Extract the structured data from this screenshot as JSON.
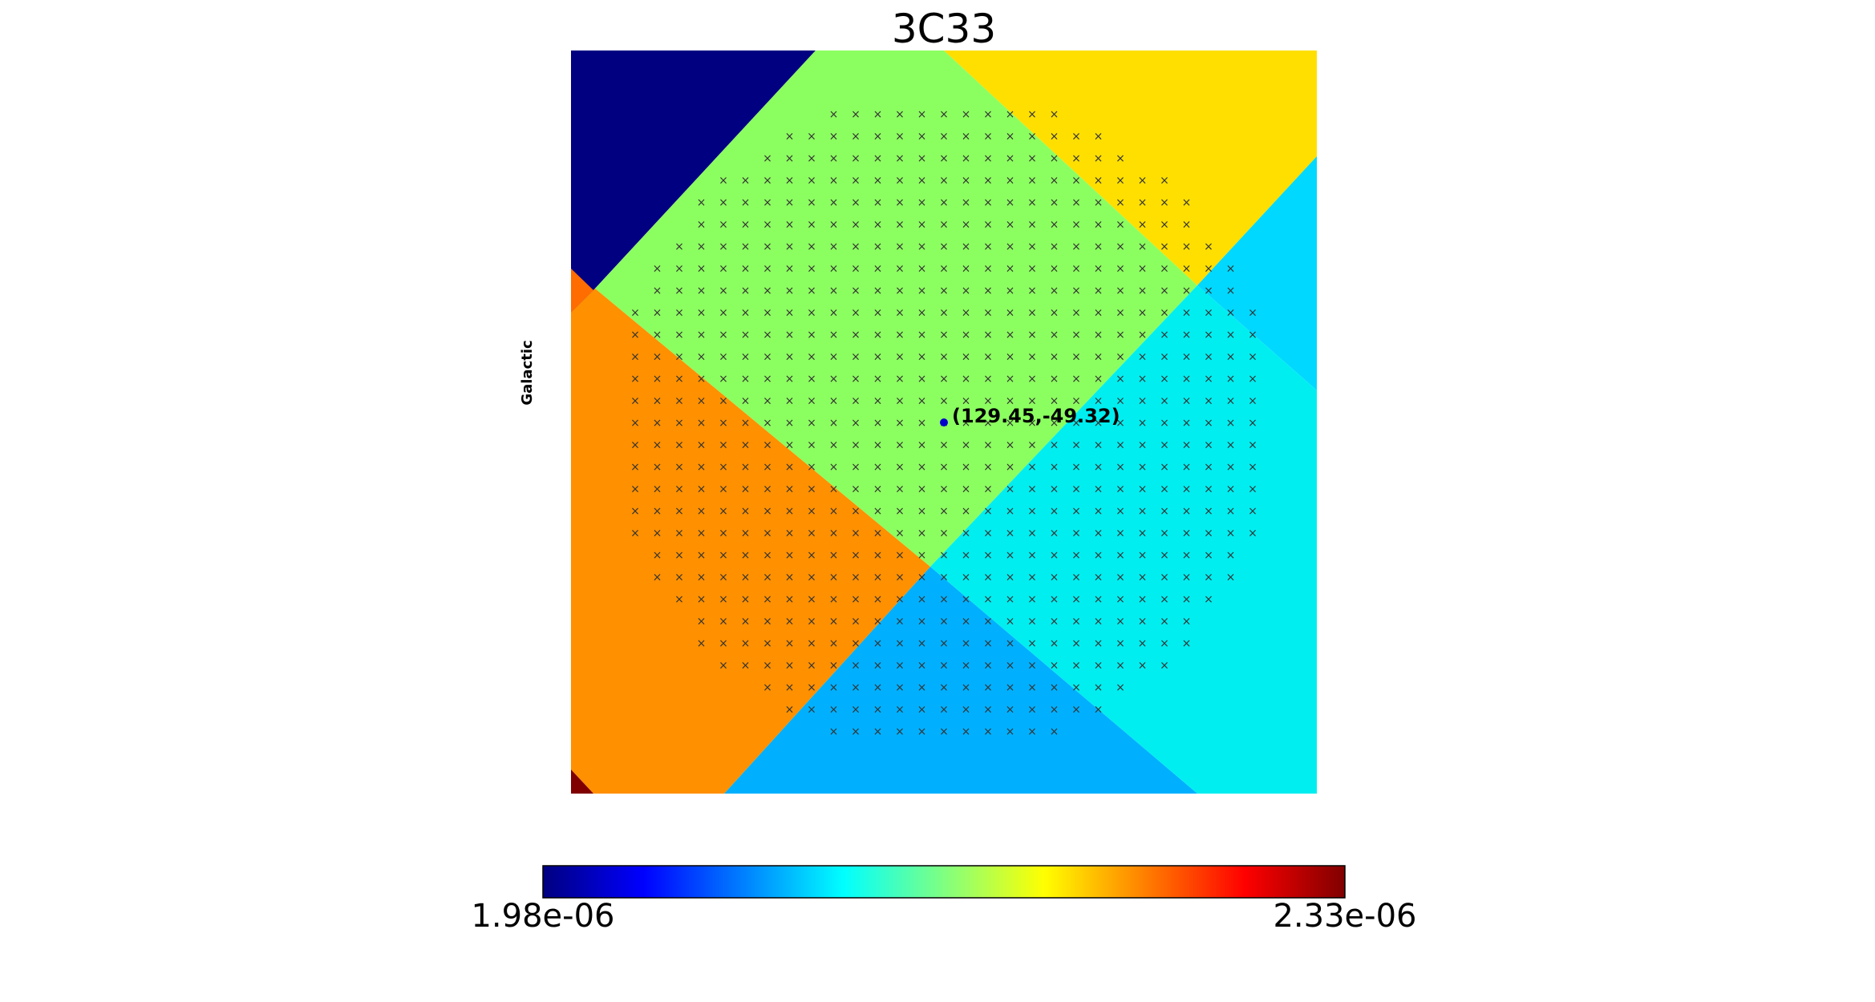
{
  "chart_data": {
    "type": "heatmap",
    "title": "3C33",
    "frame_label": "Galactic",
    "colormap": "jet",
    "grid": false,
    "marked_source": {
      "label": "(129.45,-49.32)",
      "coordinates": [
        129.45,
        -49.32
      ],
      "color": "#0000cc"
    },
    "pixel_markers": {
      "symbol": "×",
      "color": "#333333"
    },
    "pixel_regions": [
      {
        "name": "upper-left",
        "value": 1.98e-06,
        "color": "#000080"
      },
      {
        "name": "center-upper",
        "value": 2.14e-06,
        "color": "#8cff60"
      },
      {
        "name": "upper-right",
        "value": 2.2e-06,
        "color": "#ffdf00"
      },
      {
        "name": "right-upper",
        "value": 2.09e-06,
        "color": "#00d8ff"
      },
      {
        "name": "center-right",
        "value": 2.1e-06,
        "color": "#00eef0"
      },
      {
        "name": "center-lower",
        "value": 2.08e-06,
        "color": "#00b0ff"
      },
      {
        "name": "left",
        "value": 2.25e-06,
        "color": "#ff9000"
      },
      {
        "name": "left-edge",
        "value": 2.26e-06,
        "color": "#ff6c00"
      },
      {
        "name": "bottom-left-corner",
        "value": 2.33e-06,
        "color": "#800000"
      }
    ],
    "colorbar": {
      "min": 1.98e-06,
      "max": 2.33e-06,
      "min_label": "1.98e-06",
      "max_label": "2.33e-06",
      "stops": [
        "#000080",
        "#0000ff",
        "#0080ff",
        "#00ffff",
        "#80ff80",
        "#ffff00",
        "#ff8000",
        "#ff0000",
        "#800000"
      ]
    }
  }
}
